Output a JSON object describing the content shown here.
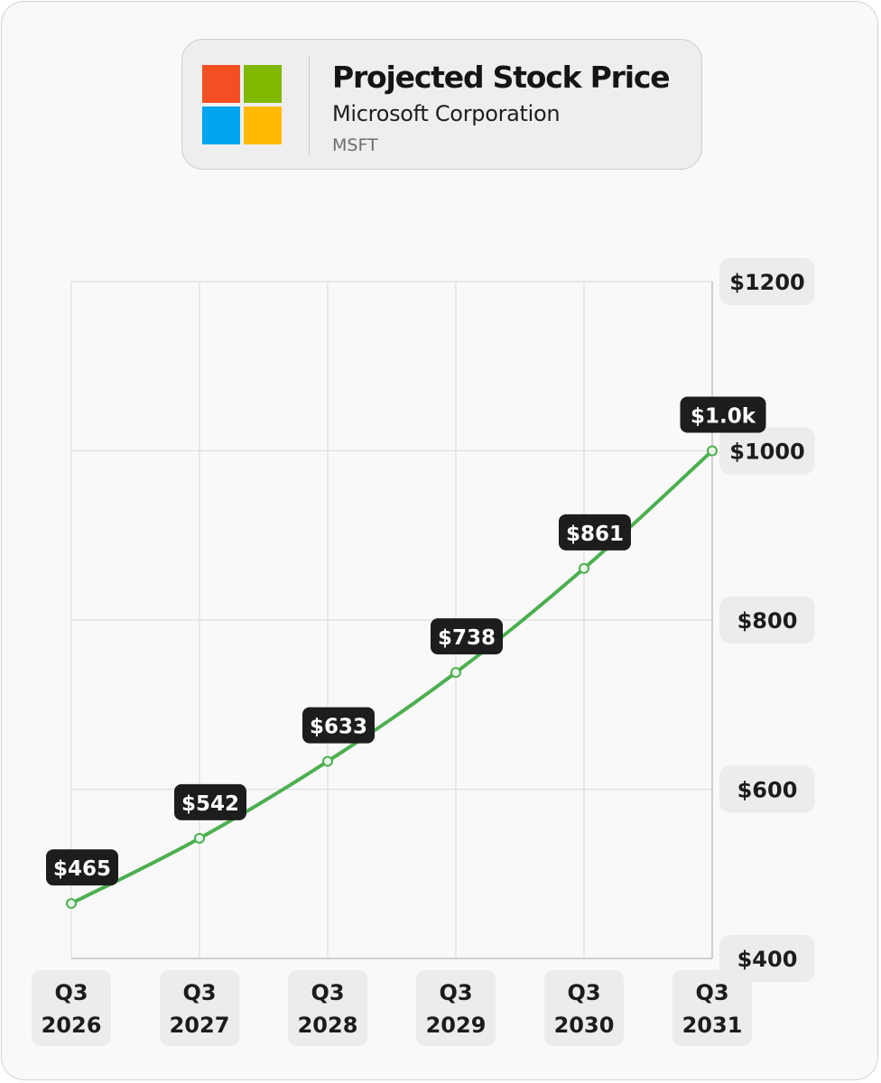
{
  "header": {
    "title": "Projected Stock Price",
    "company": "Microsoft Corporation",
    "ticker": "MSFT",
    "logo_colors": [
      "#f25022",
      "#7fba00",
      "#00a4ef",
      "#ffb900"
    ]
  },
  "chart_data": {
    "type": "line",
    "title": "Projected Stock Price",
    "categories": [
      "Q3 2026",
      "Q3 2027",
      "Q3 2028",
      "Q3 2029",
      "Q3 2030",
      "Q3 2031"
    ],
    "x_tick_labels": [
      [
        "Q3",
        "2026"
      ],
      [
        "Q3",
        "2027"
      ],
      [
        "Q3",
        "2028"
      ],
      [
        "Q3",
        "2029"
      ],
      [
        "Q3",
        "2030"
      ],
      [
        "Q3",
        "2031"
      ]
    ],
    "values": [
      465,
      542,
      633,
      738,
      861,
      1000
    ],
    "data_labels": [
      "$465",
      "$542",
      "$633",
      "$738",
      "$861",
      "$1.0k"
    ],
    "y_ticks": [
      400,
      600,
      800,
      1000,
      1200
    ],
    "y_tick_labels": [
      "$400",
      "$600",
      "$800",
      "$1000",
      "$1200"
    ],
    "ylim": [
      400,
      1200
    ],
    "y_axis_position": "right",
    "grid": true,
    "line_color": "#4caf50",
    "xlabel": "",
    "ylabel": ""
  }
}
